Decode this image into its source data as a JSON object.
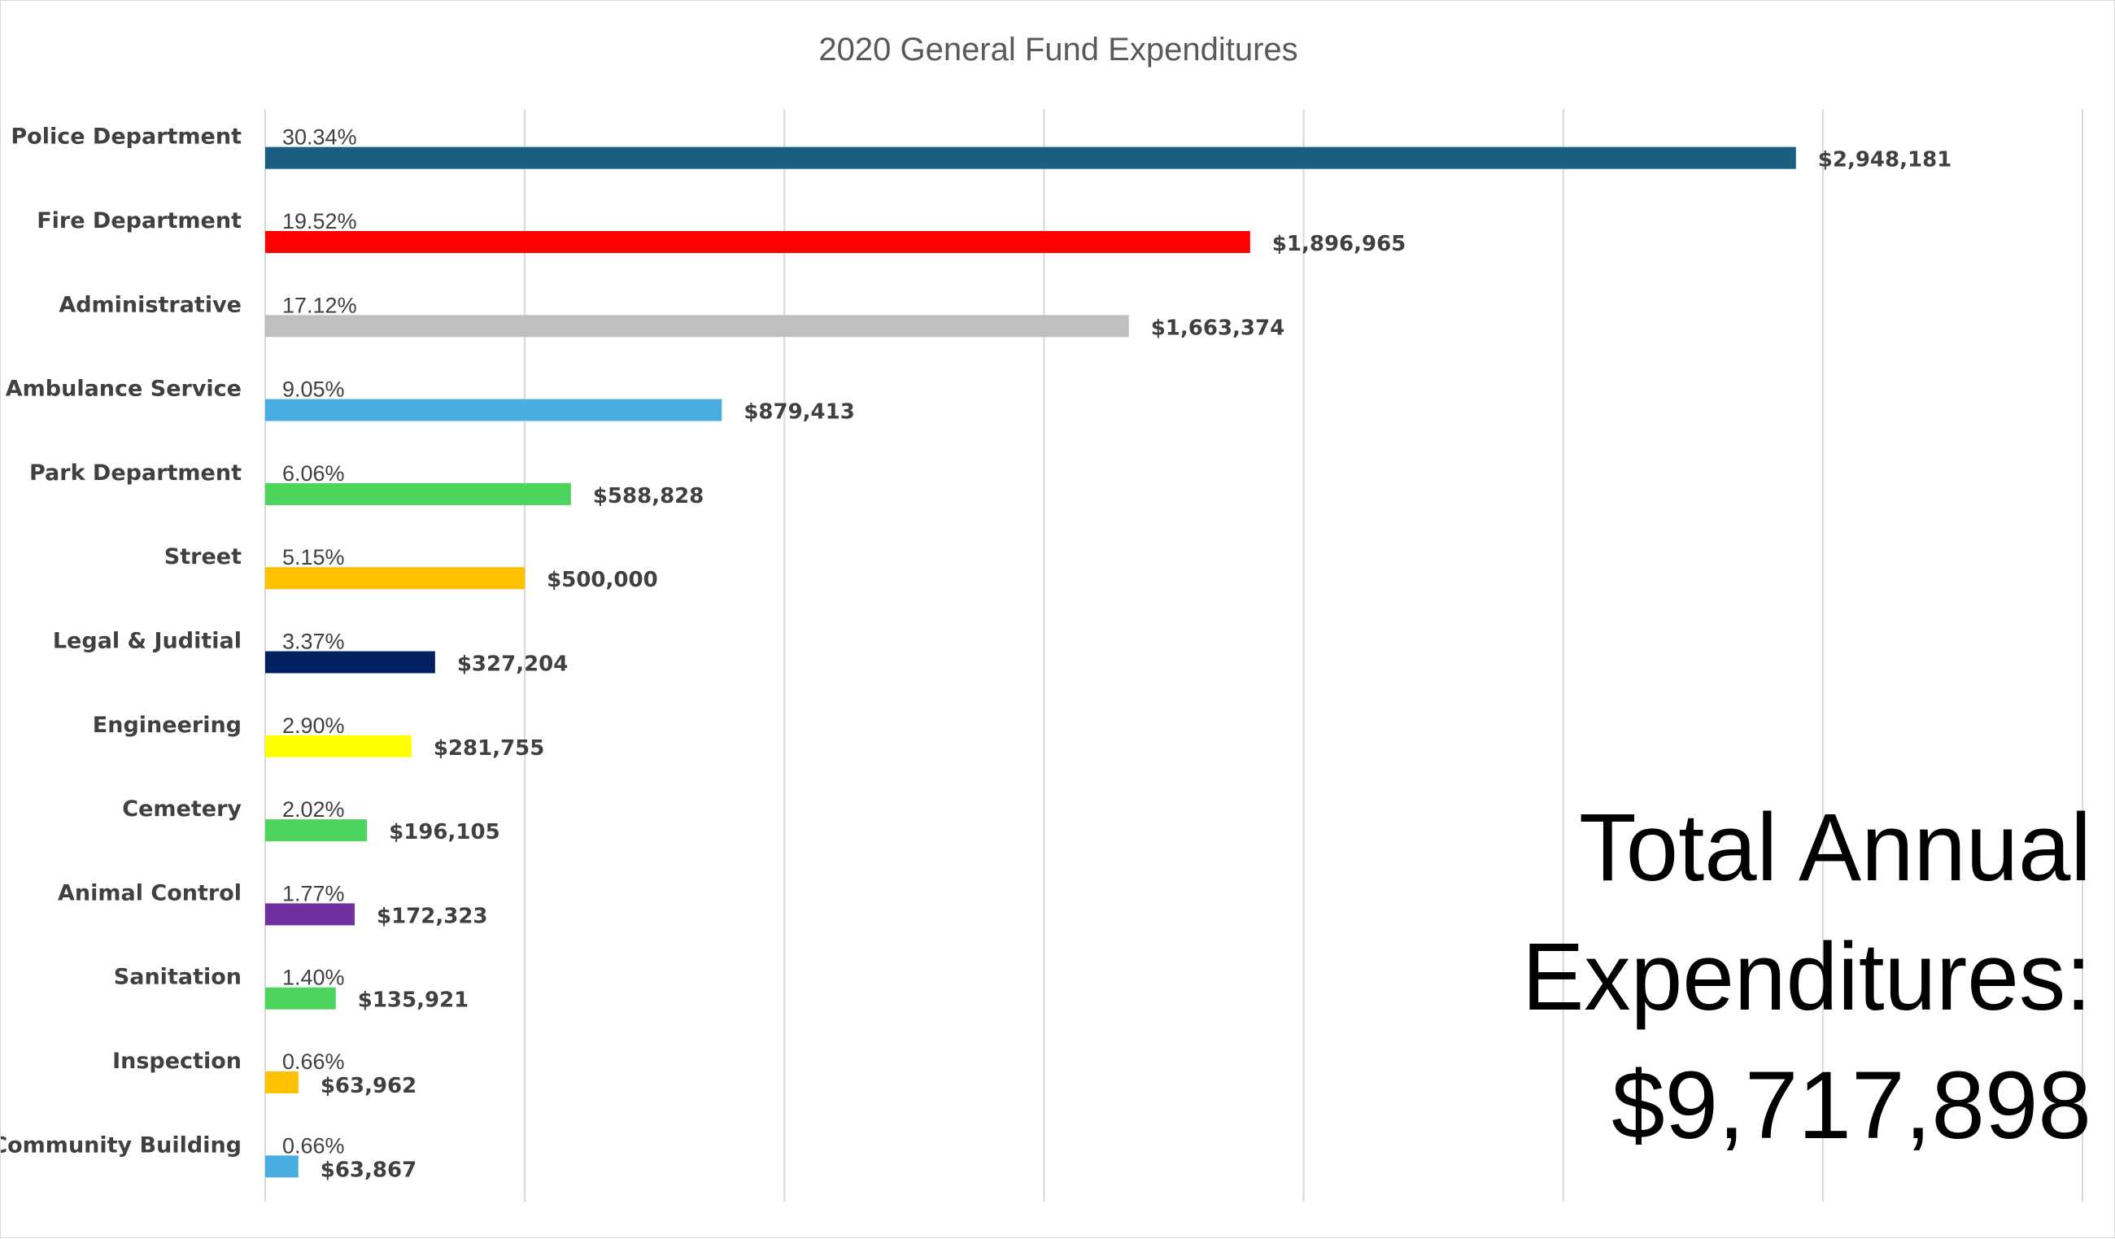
{
  "chart_data": {
    "type": "bar",
    "orientation": "horizontal",
    "title": "2020 General Fund Expenditures",
    "xlabel": "",
    "ylabel": "",
    "xlim": [
      0,
      3500000
    ],
    "x_gridline_step": 500000,
    "grid": true,
    "legend": "none",
    "axis_tick_labels_shown": false,
    "categories": [
      "Police Department",
      "Fire Department",
      "Administrative",
      "Ambulance Service",
      "Park Department",
      "Street",
      "Legal & Juditial",
      "Engineering",
      "Cemetery",
      "Animal Control",
      "Sanitation",
      "Inspection",
      "Community Building"
    ],
    "values": [
      2948181,
      1896965,
      1663374,
      879413,
      588828,
      500000,
      327204,
      281755,
      196105,
      172323,
      135921,
      63962,
      63867
    ],
    "value_labels": [
      "$2,948,181",
      "$1,896,965",
      "$1,663,374",
      "$879,413",
      "$588,828",
      "$500,000",
      "$327,204",
      "$281,755",
      "$196,105",
      "$172,323",
      "$135,921",
      "$63,962",
      "$63,867"
    ],
    "percent_labels": [
      "30.34%",
      "19.52%",
      "17.12%",
      "9.05%",
      "6.06%",
      "5.15%",
      "3.37%",
      "2.90%",
      "2.02%",
      "1.77%",
      "1.40%",
      "0.66%",
      "0.66%"
    ],
    "colors": [
      "#1a5e82",
      "#ff0000",
      "#bfbfbf",
      "#48ade0",
      "#4cd45c",
      "#ffc000",
      "#002060",
      "#ffff00",
      "#4cd45c",
      "#7030a0",
      "#4cd45c",
      "#ffc000",
      "#48ade0"
    ]
  },
  "annotation": {
    "line1": "Total Annual",
    "line2": "Expenditures:",
    "line3": "$9,717,898"
  }
}
